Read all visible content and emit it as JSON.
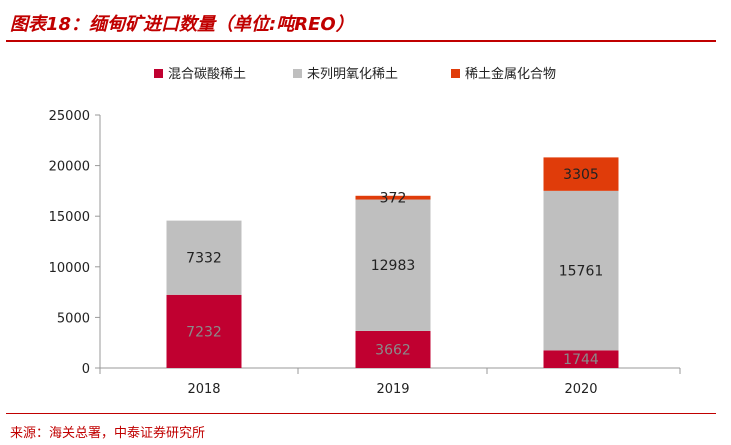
{
  "header": {
    "title": "图表18：缅甸矿进口数量（单位:吨REO）"
  },
  "footer": {
    "source": "来源：海关总署，中泰证券研究所"
  },
  "colors": {
    "accent": "#c00000",
    "series": [
      "#c00030",
      "#bfbfbf",
      "#e03c0a"
    ]
  },
  "chart_data": {
    "type": "bar",
    "stacked": true,
    "title": "缅甸矿进口数量（单位:吨REO）",
    "categories": [
      "2018",
      "2019",
      "2020"
    ],
    "series": [
      {
        "name": "混合碳酸稀土",
        "values": [
          7232,
          3662,
          1744
        ],
        "labels": [
          "7232",
          "3662",
          "1744"
        ]
      },
      {
        "name": "未列明氧化稀土",
        "values": [
          7332,
          12983,
          15761
        ],
        "labels": [
          "7332",
          "12983",
          "15761"
        ]
      },
      {
        "name": "稀土金属化合物",
        "values": [
          0,
          372,
          3305
        ],
        "labels": [
          "",
          "372",
          "3305"
        ]
      }
    ],
    "yticks": [
      0,
      5000,
      10000,
      15000,
      20000,
      25000
    ],
    "ylim": [
      0,
      25000
    ],
    "xlabel": "",
    "ylabel": "",
    "legend": "top",
    "grid": false
  }
}
